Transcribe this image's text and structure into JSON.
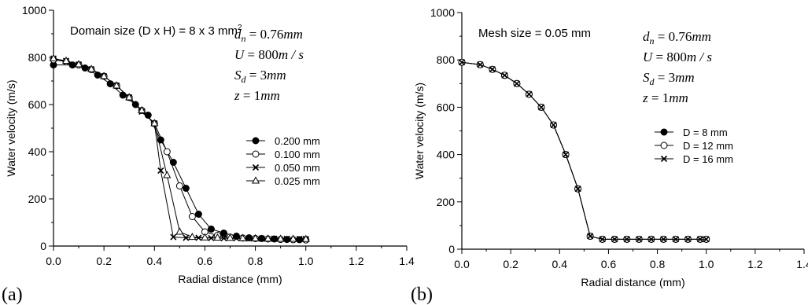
{
  "figure": {
    "panel_labels": [
      "(a)",
      "(b)"
    ]
  },
  "chart_data": [
    {
      "type": "line",
      "panel_label": "(a)",
      "xlabel": "Radial distance (mm)",
      "ylabel": "Water velocity (m/s)",
      "xlim": [
        0,
        1.4
      ],
      "ylim": [
        0,
        1000
      ],
      "xticks": [
        "0.0",
        "0.2",
        "0.4",
        "0.6",
        "0.8",
        "1.0",
        "1.2",
        "1.4"
      ],
      "yticks": [
        "0",
        "200",
        "400",
        "600",
        "800",
        "1000"
      ],
      "annotation": "Domain size (D x H) = 8 x 3 mm",
      "annotation_sup": "2",
      "params": [
        {
          "sym": "d",
          "sub": "n",
          "val": " = 0.76",
          "unit": "mm"
        },
        {
          "sym": "U",
          "sub": "",
          "val": " = 800",
          "unit": "m / s"
        },
        {
          "sym": "S",
          "sub": "d",
          "val": " = 3",
          "unit": "mm"
        },
        {
          "sym": "z",
          "sub": "",
          "val": " = 1",
          "unit": "mm"
        }
      ],
      "grid": false,
      "legend_position": "right",
      "series": [
        {
          "name": "0.200 mm",
          "marker": "filled-circle",
          "x": [
            0.0,
            0.075,
            0.125,
            0.175,
            0.225,
            0.275,
            0.325,
            0.375,
            0.425,
            0.475,
            0.525,
            0.575,
            0.625,
            0.675,
            0.725,
            0.775,
            0.825,
            0.875,
            0.925,
            0.975,
            1.0
          ],
          "y": [
            768,
            768,
            755,
            725,
            688,
            640,
            600,
            555,
            450,
            355,
            245,
            135,
            72,
            55,
            42,
            35,
            32,
            30,
            28,
            27,
            27
          ]
        },
        {
          "name": "0.100 mm",
          "marker": "open-circle",
          "x": [
            0.0,
            0.05,
            0.1,
            0.15,
            0.2,
            0.25,
            0.3,
            0.35,
            0.4,
            0.45,
            0.5,
            0.55,
            0.6,
            0.65,
            0.7,
            0.75,
            0.8,
            0.85,
            0.9,
            0.95,
            1.0
          ],
          "y": [
            790,
            782,
            768,
            748,
            720,
            680,
            630,
            575,
            520,
            400,
            255,
            125,
            60,
            45,
            38,
            34,
            32,
            30,
            28,
            27,
            26
          ]
        },
        {
          "name": "0.050 mm",
          "marker": "x",
          "x": [
            0.0,
            0.05,
            0.1,
            0.15,
            0.2,
            0.25,
            0.3,
            0.35,
            0.4,
            0.425,
            0.475,
            0.525,
            0.575,
            0.625,
            0.675,
            0.725,
            0.775,
            0.825,
            0.875,
            0.925,
            0.975,
            1.0
          ],
          "y": [
            795,
            785,
            770,
            750,
            720,
            680,
            630,
            570,
            520,
            320,
            38,
            35,
            35,
            34,
            33,
            33,
            32,
            32,
            31,
            31,
            30,
            30
          ]
        },
        {
          "name": "0.025 mm",
          "marker": "open-triangle",
          "x": [
            0.0,
            0.05,
            0.1,
            0.15,
            0.2,
            0.25,
            0.3,
            0.35,
            0.4,
            0.45,
            0.5,
            0.55,
            0.6,
            0.65,
            0.7,
            0.75,
            0.8,
            0.85,
            0.9,
            0.95,
            1.0
          ],
          "y": [
            795,
            785,
            770,
            750,
            720,
            680,
            630,
            575,
            520,
            300,
            60,
            38,
            36,
            35,
            34,
            33,
            32,
            31,
            30,
            30,
            29
          ]
        }
      ]
    },
    {
      "type": "line",
      "panel_label": "(b)",
      "xlabel": "Radial distance (mm)",
      "ylabel": "Water velocity (m/s)",
      "xlim": [
        0,
        1.4
      ],
      "ylim": [
        0,
        1000
      ],
      "xticks": [
        "0.0",
        "0.2",
        "0.4",
        "0.6",
        "0.8",
        "1.0",
        "1.2",
        "1.4"
      ],
      "yticks": [
        "0",
        "200",
        "400",
        "600",
        "800",
        "1000"
      ],
      "annotation": "Mesh size = 0.05 mm",
      "annotation_sup": "",
      "params": [
        {
          "sym": "d",
          "sub": "n",
          "val": " = 0.76",
          "unit": "mm"
        },
        {
          "sym": "U",
          "sub": "",
          "val": " = 800",
          "unit": "m / s"
        },
        {
          "sym": "S",
          "sub": "d",
          "val": " = 3",
          "unit": "mm"
        },
        {
          "sym": "z",
          "sub": "",
          "val": " = 1",
          "unit": "mm"
        }
      ],
      "grid": false,
      "legend_position": "right",
      "series": [
        {
          "name": "D = 8 mm",
          "marker": "filled-circle",
          "x": [
            0.0,
            0.075,
            0.125,
            0.175,
            0.225,
            0.275,
            0.325,
            0.375,
            0.425,
            0.475,
            0.525,
            0.575,
            0.625,
            0.675,
            0.725,
            0.775,
            0.825,
            0.875,
            0.925,
            0.975,
            1.0
          ],
          "y": [
            790,
            780,
            760,
            735,
            700,
            655,
            600,
            525,
            400,
            255,
            55,
            42,
            42,
            42,
            42,
            42,
            42,
            42,
            42,
            42,
            42
          ]
        },
        {
          "name": "D = 12 mm",
          "marker": "open-circle",
          "x": [
            0.0,
            0.075,
            0.125,
            0.175,
            0.225,
            0.275,
            0.325,
            0.375,
            0.425,
            0.475,
            0.525,
            0.575,
            0.625,
            0.675,
            0.725,
            0.775,
            0.825,
            0.875,
            0.925,
            0.975,
            1.0
          ],
          "y": [
            790,
            780,
            760,
            735,
            700,
            655,
            600,
            525,
            400,
            255,
            55,
            42,
            42,
            42,
            42,
            42,
            42,
            42,
            42,
            42,
            42
          ]
        },
        {
          "name": "D = 16 mm",
          "marker": "x",
          "x": [
            0.0,
            0.075,
            0.125,
            0.175,
            0.225,
            0.275,
            0.325,
            0.375,
            0.425,
            0.475,
            0.525,
            0.575,
            0.625,
            0.675,
            0.725,
            0.775,
            0.825,
            0.875,
            0.925,
            0.975,
            1.0
          ],
          "y": [
            790,
            780,
            760,
            735,
            700,
            655,
            600,
            525,
            400,
            255,
            55,
            42,
            42,
            42,
            42,
            42,
            42,
            42,
            42,
            42,
            42
          ]
        }
      ]
    }
  ]
}
